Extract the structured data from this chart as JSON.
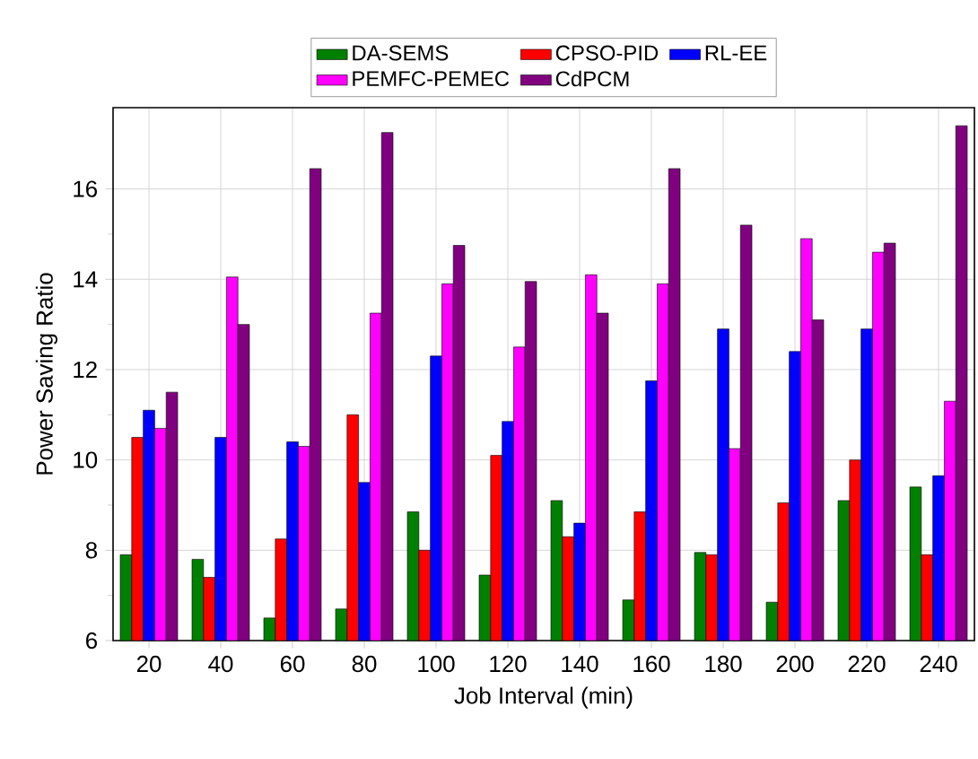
{
  "chart_data": {
    "type": "bar",
    "xlabel": "Job Interval (min)",
    "ylabel": "Power Saving Ratio",
    "categories": [
      "20",
      "40",
      "60",
      "80",
      "100",
      "120",
      "140",
      "160",
      "180",
      "200",
      "220",
      "240"
    ],
    "series": [
      {
        "name": "DA-SEMS",
        "color": "#008000",
        "values": [
          7.9,
          7.8,
          6.5,
          6.7,
          8.85,
          7.45,
          9.1,
          6.9,
          7.95,
          6.85,
          9.1,
          9.4
        ]
      },
      {
        "name": "CPSO-PID",
        "color": "#ff0000",
        "values": [
          10.5,
          7.4,
          8.25,
          11.0,
          8.0,
          10.1,
          8.3,
          8.85,
          7.9,
          9.05,
          10.0,
          7.9
        ]
      },
      {
        "name": "RL-EE",
        "color": "#0000ff",
        "values": [
          11.1,
          10.5,
          10.4,
          9.5,
          12.3,
          10.85,
          8.6,
          11.75,
          12.9,
          12.4,
          12.9,
          9.65
        ]
      },
      {
        "name": "PEMFC-PEMEC",
        "color": "#ff00ff",
        "values": [
          10.7,
          14.05,
          10.3,
          13.25,
          13.9,
          12.5,
          14.1,
          13.9,
          10.25,
          14.9,
          14.6,
          11.3
        ]
      },
      {
        "name": "CdPCM",
        "color": "#800080",
        "values": [
          11.5,
          13.0,
          16.45,
          17.25,
          14.75,
          13.95,
          13.25,
          16.45,
          15.2,
          13.1,
          14.8,
          17.4
        ]
      }
    ],
    "ylim": [
      6,
      17.8
    ],
    "yticks": [
      6,
      8,
      10,
      12,
      14,
      16
    ],
    "grid": true,
    "legend": "top"
  }
}
